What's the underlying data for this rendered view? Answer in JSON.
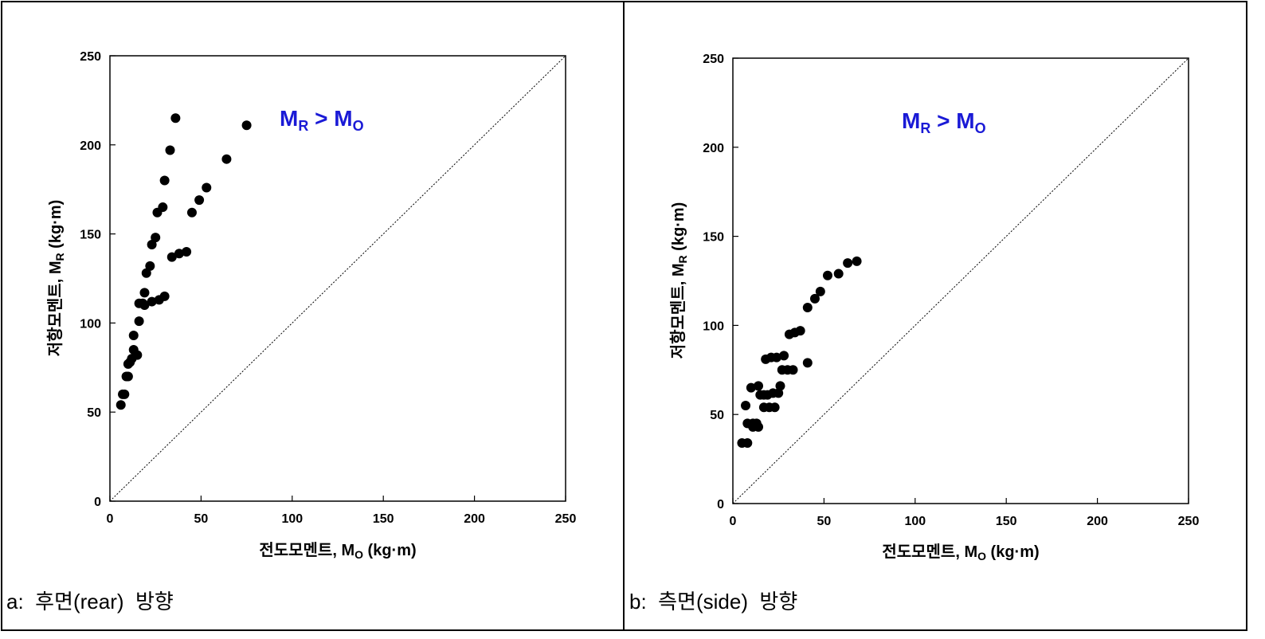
{
  "chart_data": [
    {
      "type": "scatter",
      "panel_caption": "a:  후면(rear)  방향",
      "xlabel_main": "전도모멘트, M",
      "xlabel_sub": "O",
      "xlabel_unit": " (kg·m)",
      "ylabel_main": "저항모멘트, M",
      "ylabel_sub": "R",
      "ylabel_unit": " (kg·m)",
      "annotation": {
        "lhs": "M",
        "lhs_sub": "R",
        "op": " > ",
        "rhs": "M",
        "rhs_sub": "O"
      },
      "xlim": [
        0,
        250
      ],
      "ylim": [
        0,
        250
      ],
      "xticks": [
        "0",
        "50",
        "100",
        "150",
        "200",
        "250"
      ],
      "yticks": [
        "0",
        "50",
        "100",
        "150",
        "200",
        "250"
      ],
      "reference_line": "y = x (dotted)",
      "points": [
        [
          6,
          54
        ],
        [
          7,
          60
        ],
        [
          8,
          60
        ],
        [
          9,
          70
        ],
        [
          10,
          70
        ],
        [
          10,
          77
        ],
        [
          11,
          78
        ],
        [
          12,
          80
        ],
        [
          13,
          85
        ],
        [
          13,
          93
        ],
        [
          15,
          82
        ],
        [
          16,
          101
        ],
        [
          16,
          111
        ],
        [
          18,
          111
        ],
        [
          19,
          117
        ],
        [
          19,
          110
        ],
        [
          20,
          128
        ],
        [
          22,
          132
        ],
        [
          23,
          144
        ],
        [
          25,
          148
        ],
        [
          23,
          112
        ],
        [
          27,
          113
        ],
        [
          26,
          162
        ],
        [
          29,
          165
        ],
        [
          30,
          115
        ],
        [
          30,
          180
        ],
        [
          33,
          197
        ],
        [
          34,
          137
        ],
        [
          36,
          215
        ],
        [
          38,
          139
        ],
        [
          42,
          140
        ],
        [
          45,
          162
        ],
        [
          49,
          169
        ],
        [
          53,
          176
        ],
        [
          64,
          192
        ],
        [
          75,
          211
        ]
      ]
    },
    {
      "type": "scatter",
      "panel_caption": "b:  측면(side)  방향",
      "xlabel_main": "전도모멘트, M",
      "xlabel_sub": "O",
      "xlabel_unit": " (kg·m)",
      "ylabel_main": "저항모멘트, M",
      "ylabel_sub": "R",
      "ylabel_unit": " (kg·m)",
      "annotation": {
        "lhs": "M",
        "lhs_sub": "R",
        "op": " > ",
        "rhs": "M",
        "rhs_sub": "O"
      },
      "xlim": [
        0,
        250
      ],
      "ylim": [
        0,
        250
      ],
      "xticks": [
        "0",
        "50",
        "100",
        "150",
        "200",
        "250"
      ],
      "yticks": [
        "0",
        "50",
        "100",
        "150",
        "200",
        "250"
      ],
      "reference_line": "y = x (dotted)",
      "points": [
        [
          5,
          34
        ],
        [
          8,
          34
        ],
        [
          7,
          55
        ],
        [
          8,
          45
        ],
        [
          11,
          45
        ],
        [
          11,
          43
        ],
        [
          13,
          45
        ],
        [
          14,
          43
        ],
        [
          10,
          65
        ],
        [
          14,
          66
        ],
        [
          15,
          61
        ],
        [
          17,
          54
        ],
        [
          17,
          61
        ],
        [
          18,
          81
        ],
        [
          19,
          61
        ],
        [
          20,
          54
        ],
        [
          21,
          82
        ],
        [
          22,
          62
        ],
        [
          23,
          54
        ],
        [
          24,
          82
        ],
        [
          25,
          62
        ],
        [
          26,
          66
        ],
        [
          27,
          75
        ],
        [
          28,
          83
        ],
        [
          30,
          75
        ],
        [
          31,
          95
        ],
        [
          33,
          75
        ],
        [
          34,
          96
        ],
        [
          37,
          97
        ],
        [
          41,
          79
        ],
        [
          41,
          110
        ],
        [
          45,
          115
        ],
        [
          48,
          119
        ],
        [
          52,
          128
        ],
        [
          58,
          129
        ],
        [
          63,
          135
        ],
        [
          68,
          136
        ]
      ]
    }
  ]
}
